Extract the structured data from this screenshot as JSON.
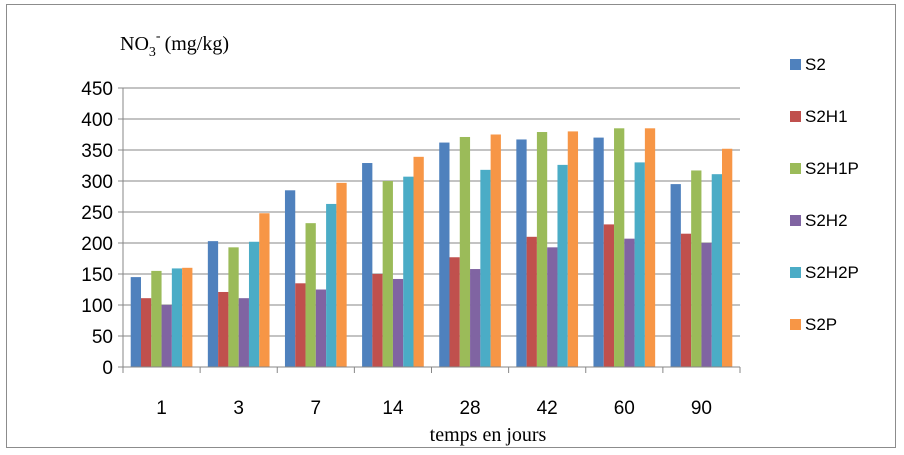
{
  "chart_data": {
    "type": "bar",
    "title": "",
    "ylabel": {
      "main": "NO",
      "sub": "3",
      "sup": "-",
      "unit": "(mg/kg)"
    },
    "xlabel": "temps en jours",
    "categories": [
      "1",
      "3",
      "7",
      "14",
      "28",
      "42",
      "60",
      "90"
    ],
    "ylim": [
      0,
      450
    ],
    "yticks": [
      0,
      50,
      100,
      150,
      200,
      250,
      300,
      350,
      400,
      450
    ],
    "grid": true,
    "legend_position": "right",
    "series": [
      {
        "name": "S2",
        "color": "#4F81BD",
        "values": [
          145,
          203,
          285,
          329,
          362,
          367,
          370,
          295
        ]
      },
      {
        "name": "S2H1",
        "color": "#C0504D",
        "values": [
          111,
          121,
          135,
          150,
          177,
          210,
          230,
          215
        ]
      },
      {
        "name": "S2H1P",
        "color": "#9BBB59",
        "values": [
          155,
          193,
          232,
          300,
          371,
          379,
          385,
          317
        ]
      },
      {
        "name": "S2H2",
        "color": "#8064A2",
        "values": [
          100,
          111,
          125,
          142,
          158,
          193,
          207,
          200
        ]
      },
      {
        "name": "S2H2P",
        "color": "#4BACC6",
        "values": [
          159,
          202,
          263,
          307,
          318,
          326,
          330,
          311
        ]
      },
      {
        "name": "S2P",
        "color": "#F79646",
        "values": [
          160,
          248,
          297,
          339,
          375,
          380,
          385,
          352
        ]
      }
    ]
  }
}
